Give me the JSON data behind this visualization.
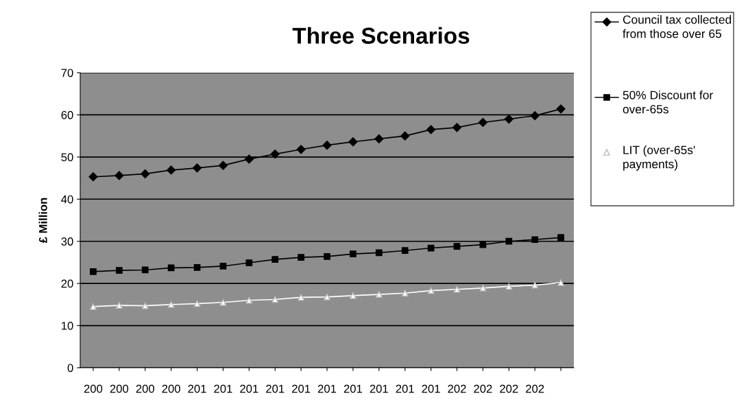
{
  "chart_data": {
    "type": "line",
    "title": "Three Scenarios",
    "ylabel": "£ Million",
    "categories": [
      "200",
      "200",
      "200",
      "200",
      "201",
      "201",
      "201",
      "201",
      "201",
      "201",
      "201",
      "201",
      "201",
      "201",
      "202",
      "202",
      "202",
      "202",
      null
    ],
    "series": [
      {
        "name": "Council tax collected from those over 65",
        "color": "#000000",
        "marker": "diamond",
        "values": [
          45.3,
          45.6,
          46.0,
          46.9,
          47.4,
          48.0,
          49.5,
          50.7,
          51.8,
          52.8,
          53.6,
          54.3,
          55.0,
          56.5,
          57.0,
          58.2,
          59.0,
          59.8,
          61.4
        ]
      },
      {
        "name": "50% Discount for over-65s",
        "color": "#000000",
        "marker": "square",
        "values": [
          22.8,
          23.1,
          23.2,
          23.7,
          23.8,
          24.1,
          24.9,
          25.7,
          26.2,
          26.4,
          27.0,
          27.3,
          27.8,
          28.4,
          28.8,
          29.2,
          30.0,
          30.4,
          30.9
        ]
      },
      {
        "name": "LIT (over-65s' payments)",
        "color": "#ffffff",
        "marker": "triangle",
        "values": [
          14.5,
          14.8,
          14.7,
          15.0,
          15.2,
          15.5,
          16.0,
          16.2,
          16.7,
          16.8,
          17.1,
          17.4,
          17.7,
          18.3,
          18.6,
          18.9,
          19.3,
          19.6,
          20.2
        ]
      }
    ],
    "ylim": [
      0,
      70
    ],
    "yticks": [
      0,
      10,
      20,
      30,
      40,
      50,
      60,
      70
    ],
    "grid": "y",
    "legend": "right"
  }
}
